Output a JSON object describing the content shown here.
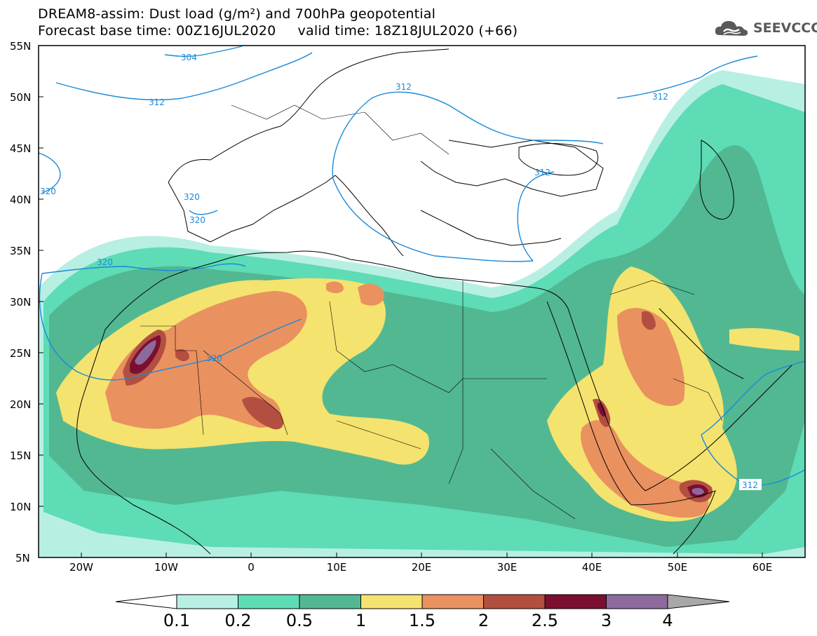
{
  "title": {
    "line1": "DREAM8-assim: Dust load (g/m²) and 700hPa geopotential",
    "line2": "Forecast base time: 00Z16JUL2020     valid time: 18Z18JUL2020 (+66)"
  },
  "logo": {
    "text": "SEEVCCC",
    "icon": "cloud-icon"
  },
  "map": {
    "lon_range": [
      -25,
      65
    ],
    "lat_range": [
      5,
      55
    ],
    "lat_labels": [
      "55N",
      "50N",
      "45N",
      "40N",
      "35N",
      "30N",
      "25N",
      "20N",
      "15N",
      "10N",
      "5N"
    ],
    "lon_labels": [
      "20W",
      "10W",
      "0",
      "10E",
      "20E",
      "30E",
      "40E",
      "50E",
      "60E"
    ],
    "contour_labels": [
      "304",
      "312",
      "312",
      "312",
      "312",
      "320",
      "320",
      "320",
      "320",
      "320",
      "312"
    ],
    "colors": {
      "frame": "#000000",
      "coast": "#000000",
      "contour": "#1a8ad8"
    }
  },
  "colorbar": {
    "labels": [
      "0.1",
      "0.2",
      "0.5",
      "1",
      "1.5",
      "2",
      "2.5",
      "3",
      "4"
    ],
    "colors": [
      "#b8efe3",
      "#5ddcb6",
      "#52b892",
      "#f4e36e",
      "#ea9160",
      "#b34f40",
      "#7c0f30",
      "#8d6a9e"
    ],
    "under_color": "#ffffff",
    "over_color": "#a8a8a8"
  }
}
